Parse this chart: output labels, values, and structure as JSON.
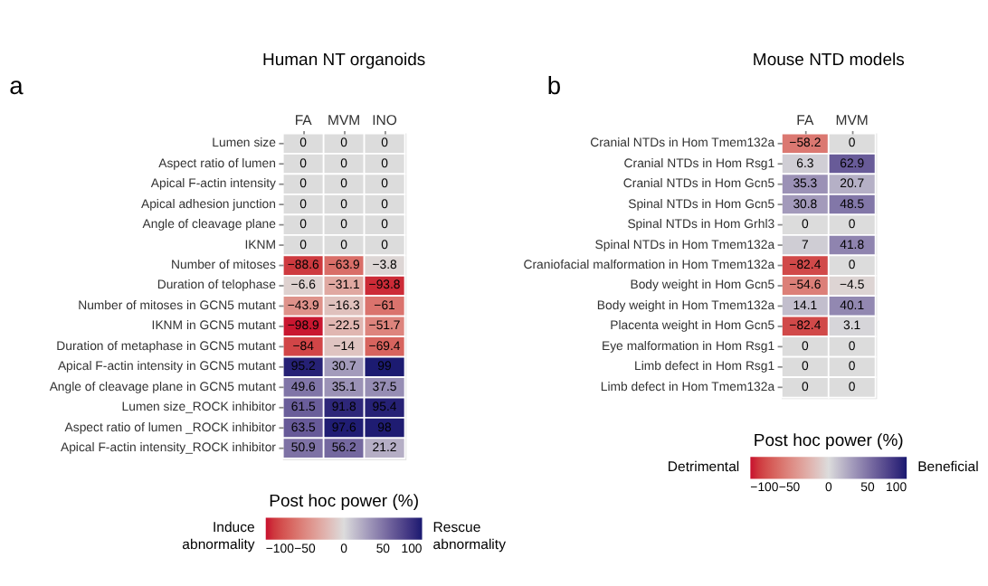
{
  "chart_data": [
    {
      "type": "heatmap",
      "title": "Human NT organoids",
      "categories": [
        "FA",
        "MVM",
        "INO"
      ],
      "y_categories": [
        "Lumen size",
        "Aspect ratio of lumen",
        "Apical F-actin intensity",
        "Apical adhesion junction",
        "Angle of cleavage plane",
        "IKNM",
        "Number of mitoses",
        "Duration of telophase",
        "Number of mitoses in GCN5 mutant",
        "IKNM in GCN5 mutant",
        "Duration of metaphase in GCN5 mutant",
        "Apical F-actin intensity in GCN5 mutant",
        "Angle of cleavage plane in GCN5 mutant",
        "Lumen size_ROCK inhibitor",
        "Aspect ratio of lumen _ROCK inhibitor",
        "Apical F-actin intensity_ROCK inhibitor"
      ],
      "cells": [
        [
          0,
          0,
          0
        ],
        [
          0,
          0,
          0
        ],
        [
          0,
          0,
          0
        ],
        [
          0,
          0,
          0
        ],
        [
          0,
          0,
          0
        ],
        [
          0,
          0,
          0
        ],
        [
          -88.6,
          -63.9,
          -3.8
        ],
        [
          -6.6,
          -31.1,
          -93.8
        ],
        [
          -43.9,
          -16.3,
          -61
        ],
        [
          -98.9,
          -22.5,
          -51.7
        ],
        [
          -84,
          -14,
          -69.4
        ],
        [
          95.2,
          30.7,
          99
        ],
        [
          49.6,
          35.1,
          37.5
        ],
        [
          61.5,
          91.8,
          95.4
        ],
        [
          63.5,
          97.6,
          98
        ],
        [
          50.9,
          56.2,
          21.2
        ]
      ],
      "data_labels": true,
      "clabel": "Post hoc power (%)",
      "clim": [
        -100,
        100
      ],
      "cticks": [
        -100,
        -50,
        0,
        50,
        100
      ],
      "annotations": [
        "a",
        "Induce abnormality",
        "Rescue abnormality"
      ]
    },
    {
      "type": "heatmap",
      "title": "Mouse NTD models",
      "categories": [
        "FA",
        "MVM"
      ],
      "y_categories": [
        "Cranial NTDs in Hom Tmem132a",
        "Cranial NTDs in Hom Rsg1",
        "Cranial NTDs in Hom Gcn5",
        "Spinal NTDs in Hom Gcn5",
        "Spinal NTDs in Hom Grhl3",
        "Spinal NTDs in Hom Tmem132a",
        "Craniofacial malformation in Hom Tmem132a",
        "Body weight in Hom Gcn5",
        "Body weight in Hom Tmem132a",
        "Placenta weight in Hom Gcn5",
        "Eye malformation in Hom Rsg1",
        "Limb defect in Hom Rsg1",
        "Limb defect in Hom Tmem132a"
      ],
      "cells": [
        [
          -58.2,
          0
        ],
        [
          6.3,
          62.9
        ],
        [
          35.3,
          20.7
        ],
        [
          30.8,
          48.5
        ],
        [
          0,
          0
        ],
        [
          7,
          41.8
        ],
        [
          -82.4,
          0
        ],
        [
          -54.6,
          -4.5
        ],
        [
          14.1,
          40.1
        ],
        [
          -82.4,
          3.1
        ],
        [
          0,
          0
        ],
        [
          0,
          0
        ],
        [
          0,
          0
        ]
      ],
      "data_labels": true,
      "clabel": "Post hoc power (%)",
      "clim": [
        -100,
        100
      ],
      "cticks": [
        -100,
        -50,
        0,
        50,
        100
      ],
      "annotations": [
        "b",
        "Detrimental",
        "Beneficial"
      ]
    }
  ]
}
